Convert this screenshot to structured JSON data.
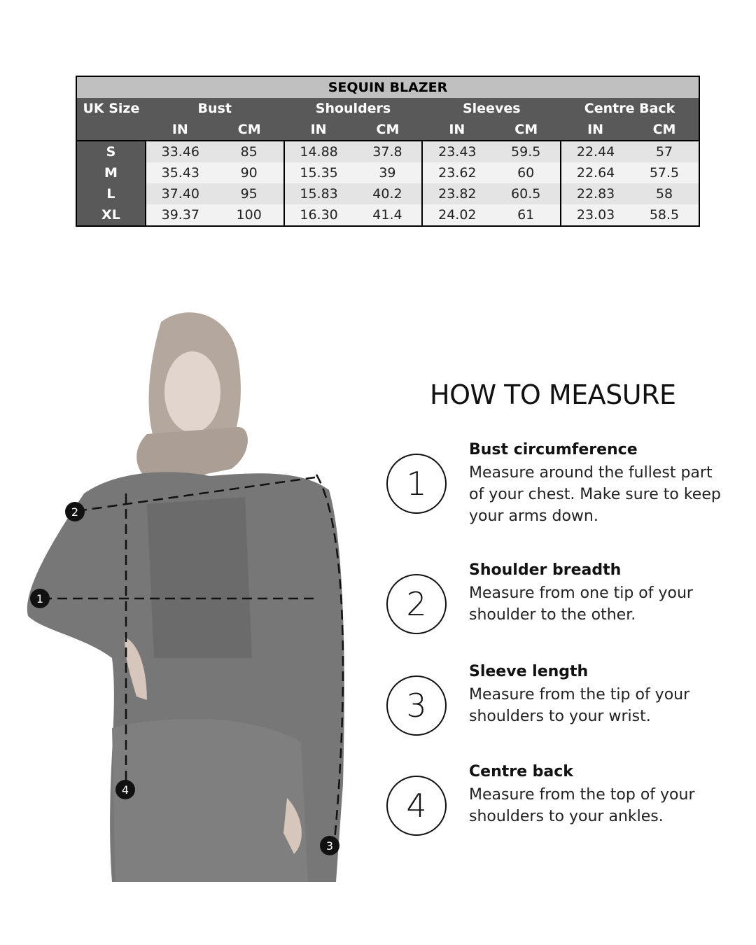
{
  "table": {
    "title": "SEQUIN BLAZER",
    "size_header": "UK Size",
    "groups": [
      "Bust",
      "Shoulders",
      "Sleeves",
      "Centre Back"
    ],
    "units": [
      "IN",
      "CM"
    ],
    "rows": [
      {
        "size": "S",
        "values": [
          "33.46",
          "85",
          "14.88",
          "37.8",
          "23.43",
          "59.5",
          "22.44",
          "57"
        ]
      },
      {
        "size": "M",
        "values": [
          "35.43",
          "90",
          "15.35",
          "39",
          "23.62",
          "60",
          "22.64",
          "57.5"
        ]
      },
      {
        "size": "L",
        "values": [
          "37.40",
          "95",
          "15.83",
          "40.2",
          "23.82",
          "60.5",
          "22.83",
          "58"
        ]
      },
      {
        "size": "XL",
        "values": [
          "39.37",
          "100",
          "16.30",
          "41.4",
          "24.02",
          "61",
          "23.03",
          "58.5"
        ]
      }
    ]
  },
  "how_to": {
    "title": "HOW TO MEASURE",
    "steps": [
      {
        "num": "1",
        "title": "Bust circumference",
        "desc": "Measure around the fullest part of your chest. Make sure to keep your arms down."
      },
      {
        "num": "2",
        "title": "Shoulder breadth",
        "desc": "Measure from one tip of your shoulder to the other."
      },
      {
        "num": "3",
        "title": "Sleeve length",
        "desc": "Measure from the tip of your shoulders to your wrist."
      },
      {
        "num": "4",
        "title": "Centre back",
        "desc": "Measure from the top of your shoulders to your ankles."
      }
    ]
  },
  "figure_markers": [
    "1",
    "2",
    "3",
    "4"
  ]
}
